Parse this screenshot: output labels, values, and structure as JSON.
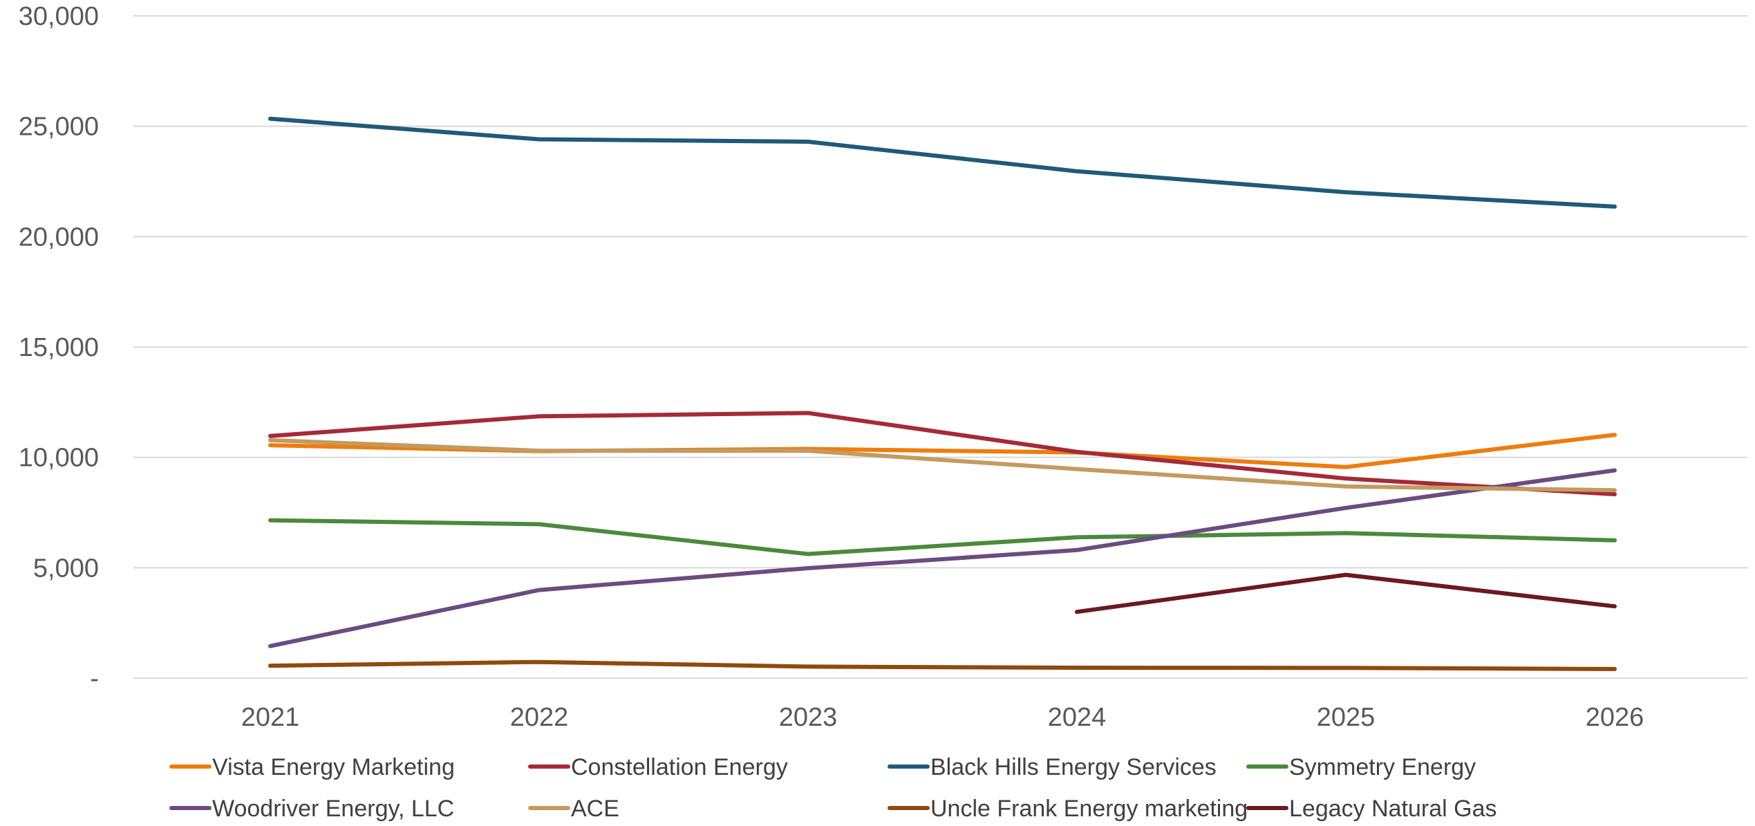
{
  "chart_data": {
    "type": "line",
    "title": "",
    "xlabel": "",
    "ylabel": "",
    "categories": [
      "2021",
      "2022",
      "2023",
      "2024",
      "2025",
      "2026"
    ],
    "ylim": [
      0,
      30000
    ],
    "yticks": [
      0,
      5000,
      10000,
      15000,
      20000,
      25000,
      30000
    ],
    "ytick_labels": [
      "-",
      "5,000",
      "10,000",
      "15,000",
      "20,000",
      "25,000",
      "30,000"
    ],
    "grid": true,
    "legend_position": "bottom",
    "series": [
      {
        "name": "Vista Energy Marketing",
        "color": "#ED7D0F",
        "values": [
          10550,
          10280,
          10380,
          10220,
          9560,
          11020
        ]
      },
      {
        "name": "Constellation Energy",
        "color": "#A52A38",
        "values": [
          10970,
          11860,
          12010,
          10250,
          9040,
          8330
        ]
      },
      {
        "name": "Black Hills Energy Services",
        "color": "#1F5A7A",
        "values": [
          25340,
          24410,
          24300,
          22960,
          22010,
          21360
        ]
      },
      {
        "name": "Symmetry Energy",
        "color": "#4A8A3C",
        "values": [
          7150,
          6970,
          5620,
          6380,
          6570,
          6240
        ]
      },
      {
        "name": "Woodriver Energy, LLC",
        "color": "#6B4C80",
        "values": [
          1450,
          3990,
          4980,
          5800,
          7710,
          9410
        ]
      },
      {
        "name": "ACE",
        "color": "#C49A60",
        "values": [
          10780,
          10300,
          10300,
          9470,
          8680,
          8510
        ]
      },
      {
        "name": "Uncle Frank Energy marketing",
        "color": "#8F4A0C",
        "values": [
          560,
          730,
          520,
          470,
          460,
          410
        ]
      },
      {
        "name": "Legacy Natural Gas",
        "color": "#6B1A1F",
        "values": [
          null,
          null,
          null,
          3000,
          4680,
          3250
        ]
      }
    ]
  }
}
